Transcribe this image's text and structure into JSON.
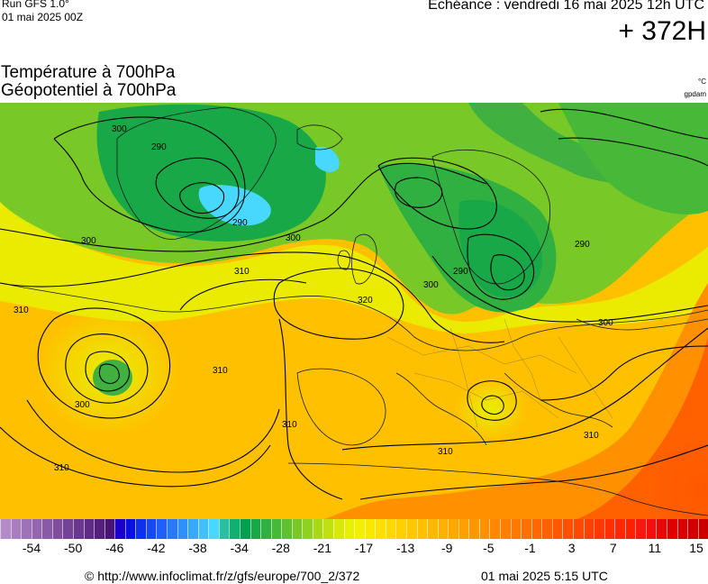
{
  "header": {
    "run_label": "Run GFS 1.0°",
    "run_date": "01 mai 2025 00Z",
    "valid_time": "Echéance : vendredi 16 mai 2025 12h UTC",
    "lead_time": "+ 372H",
    "param_line1": "Température à 700hPa",
    "param_line2": "Géopotentiel à 700hPa",
    "unit_temp": "°C",
    "unit_geo": "gpdam"
  },
  "map": {
    "region": "europe",
    "contour_labels": [
      "300",
      "300",
      "300",
      "300",
      "300",
      "300",
      "290",
      "290",
      "290",
      "290",
      "310",
      "310",
      "310",
      "310",
      "310",
      "310",
      "310",
      "320"
    ],
    "low_markers": [
      "azores-low",
      "ionian-low",
      "greenland-low",
      "finland-low"
    ]
  },
  "colorbar": {
    "colors": [
      "#b58ac8",
      "#a97ebf",
      "#9e72b7",
      "#9466ae",
      "#895aa6",
      "#7f4e9d",
      "#744395",
      "#69378c",
      "#5f2b84",
      "#55207b",
      "#4a1473",
      "#1a00c8",
      "#0a10e0",
      "#1030f0",
      "#1848f4",
      "#2060f6",
      "#2878f8",
      "#3090fa",
      "#38a8fc",
      "#40c0fd",
      "#48d8fe",
      "#28c0a0",
      "#10b070",
      "#00a050",
      "#18a848",
      "#30b040",
      "#48b838",
      "#60c030",
      "#78c828",
      "#90d020",
      "#a8d818",
      "#c0e010",
      "#d8e808",
      "#e8f000",
      "#f0f000",
      "#f8e800",
      "#ffe000",
      "#ffd800",
      "#ffd000",
      "#ffc800",
      "#ffc000",
      "#ffb800",
      "#ffb000",
      "#ffa800",
      "#ffa000",
      "#ff9800",
      "#ff9000",
      "#ff8800",
      "#ff8000",
      "#ff7800",
      "#ff7000",
      "#ff6800",
      "#ff6000",
      "#ff5800",
      "#ff5000",
      "#ff4800",
      "#ff4000",
      "#ff3800",
      "#ff3000",
      "#ff2800",
      "#ff2000",
      "#f81810",
      "#f01010",
      "#e80808",
      "#e00000",
      "#d80000",
      "#d00000",
      "#c80000"
    ],
    "tick_labels": [
      "-54",
      "-50",
      "-46",
      "-42",
      "-38",
      "-34",
      "-28",
      "-21",
      "-17",
      "-13",
      "-9",
      "-5",
      "-1",
      "3",
      "7",
      "11",
      "15"
    ]
  },
  "footer": {
    "credit": "© http://www.infoclimat.fr/z/gfs/europe/700_2/372",
    "generated": "01 mai 2025  5:15 UTC"
  }
}
